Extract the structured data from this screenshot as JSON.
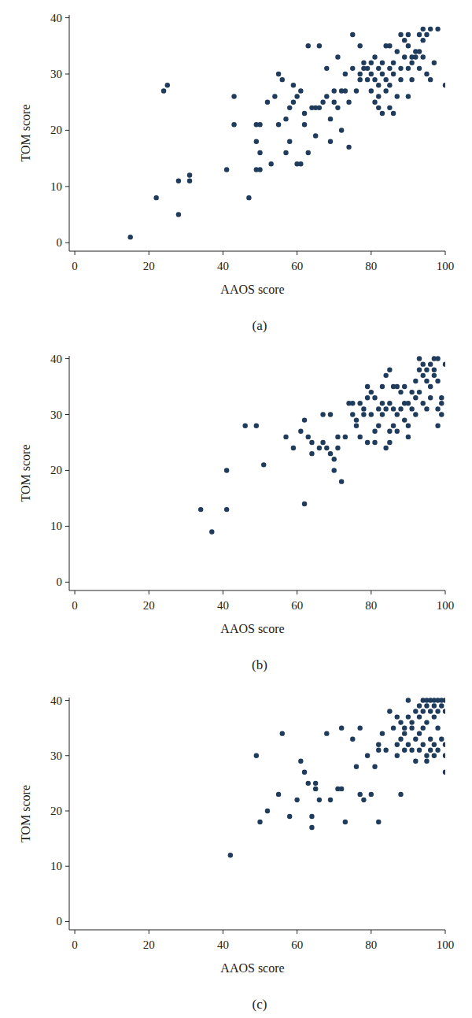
{
  "chart_data": [
    {
      "type": "scatter",
      "title": "(a)",
      "x_label": "AAOS score",
      "y_label": "TOM score",
      "color": "#1f3c5c",
      "marker": "circle",
      "xlim": [
        -1.5,
        100
      ],
      "ylim": [
        -1.5,
        40.5
      ],
      "xticks": [
        0,
        20,
        40,
        60,
        80,
        100
      ],
      "yticks": [
        0,
        10,
        20,
        30,
        40
      ],
      "x": [
        15,
        22,
        28,
        28,
        31,
        31,
        24,
        25,
        41,
        43,
        43,
        47,
        49,
        50,
        49,
        49,
        50,
        50,
        52,
        53,
        54,
        55,
        55,
        56,
        57,
        57,
        58,
        58,
        59,
        59,
        60,
        60,
        61,
        61,
        62,
        62,
        63,
        63,
        64,
        65,
        65,
        66,
        66,
        67,
        68,
        68,
        69,
        69,
        70,
        70,
        71,
        71,
        72,
        72,
        73,
        73,
        74,
        74,
        75,
        75,
        76,
        77,
        77,
        77,
        78,
        78,
        79,
        79,
        80,
        80,
        80,
        81,
        81,
        81,
        82,
        82,
        82,
        82,
        83,
        83,
        83,
        84,
        84,
        84,
        85,
        85,
        85,
        85,
        86,
        86,
        86,
        87,
        87,
        88,
        88,
        88,
        89,
        89,
        90,
        90,
        90,
        90,
        91,
        91,
        91,
        92,
        92,
        93,
        93,
        93,
        94,
        94,
        94,
        95,
        95,
        96,
        96,
        97,
        98,
        100
      ],
      "values": [
        1,
        8,
        5,
        11,
        11,
        12,
        27,
        28,
        13,
        21,
        26,
        8,
        13,
        13,
        18,
        21,
        21,
        16,
        25,
        14,
        26,
        30,
        21,
        29,
        22,
        16,
        18,
        24,
        25,
        28,
        14,
        26,
        27,
        14,
        23,
        21,
        16,
        35,
        24,
        19,
        24,
        35,
        24,
        25,
        31,
        26,
        18,
        22,
        27,
        25,
        33,
        24,
        20,
        27,
        30,
        27,
        17,
        25,
        37,
        31,
        27,
        35,
        29,
        30,
        32,
        31,
        29,
        31,
        32,
        30,
        27,
        33,
        29,
        25,
        31,
        28,
        26,
        24,
        30,
        23,
        32,
        29,
        27,
        35,
        35,
        31,
        28,
        24,
        32,
        30,
        23,
        34,
        26,
        37,
        31,
        29,
        36,
        33,
        37,
        35,
        31,
        26,
        32,
        33,
        29,
        34,
        33,
        37,
        31,
        34,
        38,
        36,
        33,
        37,
        30,
        29,
        38,
        32,
        38,
        28
      ]
    },
    {
      "type": "scatter",
      "title": "(b)",
      "x_label": "AAOS score",
      "y_label": "TOM score",
      "color": "#1f3c5c",
      "marker": "circle",
      "xlim": [
        -1.5,
        100
      ],
      "ylim": [
        -1.5,
        40.5
      ],
      "xticks": [
        0,
        20,
        40,
        60,
        80,
        100
      ],
      "yticks": [
        0,
        10,
        20,
        30,
        40
      ],
      "x": [
        34,
        37,
        41,
        41,
        46,
        49,
        51,
        57,
        59,
        61,
        62,
        62,
        63,
        64,
        64,
        66,
        67,
        67,
        68,
        69,
        69,
        70,
        70,
        71,
        71,
        72,
        73,
        74,
        75,
        75,
        76,
        76,
        77,
        77,
        78,
        78,
        79,
        79,
        79,
        80,
        80,
        81,
        81,
        81,
        82,
        82,
        83,
        83,
        83,
        84,
        84,
        84,
        85,
        85,
        85,
        85,
        86,
        86,
        86,
        87,
        87,
        87,
        88,
        88,
        89,
        89,
        89,
        90,
        90,
        90,
        91,
        91,
        92,
        92,
        92,
        93,
        93,
        93,
        94,
        94,
        94,
        95,
        95,
        95,
        96,
        96,
        96,
        97,
        97,
        97,
        98,
        98,
        98,
        98,
        99,
        99,
        99,
        100
      ],
      "values": [
        13,
        9,
        20,
        13,
        28,
        28,
        21,
        26,
        24,
        27,
        29,
        14,
        26,
        23,
        25,
        24,
        30,
        25,
        24,
        30,
        23,
        22,
        20,
        26,
        24,
        18,
        26,
        32,
        32,
        30,
        28,
        29,
        32,
        26,
        31,
        30,
        35,
        33,
        25,
        30,
        34,
        33,
        27,
        25,
        31,
        28,
        30,
        35,
        32,
        37,
        31,
        24,
        38,
        32,
        27,
        25,
        31,
        35,
        28,
        35,
        30,
        27,
        34,
        31,
        35,
        29,
        32,
        32,
        28,
        26,
        34,
        31,
        36,
        33,
        30,
        38,
        40,
        34,
        39,
        32,
        37,
        38,
        36,
        31,
        39,
        35,
        33,
        38,
        40,
        37,
        40,
        36,
        31,
        28,
        33,
        32,
        30,
        39
      ]
    },
    {
      "type": "scatter",
      "title": "(c)",
      "x_label": "AAOS score",
      "y_label": "TOM score",
      "color": "#1f3c5c",
      "marker": "circle",
      "xlim": [
        -1.5,
        100
      ],
      "ylim": [
        -1.5,
        40.5
      ],
      "xticks": [
        0,
        20,
        40,
        60,
        80,
        100
      ],
      "yticks": [
        0,
        10,
        20,
        30,
        40
      ],
      "x": [
        42,
        49,
        50,
        52,
        55,
        56,
        58,
        60,
        61,
        62,
        63,
        64,
        64,
        65,
        65,
        66,
        68,
        69,
        71,
        72,
        72,
        73,
        75,
        76,
        77,
        77,
        78,
        79,
        80,
        81,
        82,
        82,
        82,
        83,
        84,
        85,
        86,
        87,
        87,
        87,
        88,
        88,
        88,
        89,
        89,
        89,
        90,
        90,
        90,
        91,
        91,
        91,
        92,
        92,
        92,
        93,
        93,
        93,
        93,
        94,
        94,
        94,
        94,
        95,
        95,
        95,
        95,
        95,
        96,
        96,
        96,
        96,
        97,
        97,
        97,
        97,
        97,
        98,
        98,
        98,
        98,
        99,
        99,
        99,
        100,
        100,
        100,
        100,
        100
      ],
      "values": [
        12,
        30,
        18,
        20,
        23,
        34,
        19,
        22,
        29,
        27,
        25,
        19,
        17,
        25,
        24,
        22,
        34,
        22,
        24,
        35,
        24,
        18,
        33,
        28,
        35,
        23,
        22,
        30,
        23,
        28,
        31,
        32,
        18,
        34,
        31,
        38,
        35,
        32,
        30,
        37,
        36,
        33,
        23,
        35,
        31,
        34,
        40,
        37,
        32,
        36,
        35,
        31,
        38,
        33,
        29,
        39,
        37,
        34,
        31,
        40,
        38,
        35,
        32,
        40,
        39,
        36,
        30,
        29,
        40,
        38,
        33,
        31,
        40,
        39,
        37,
        32,
        30,
        40,
        38,
        35,
        31,
        40,
        39,
        33,
        40,
        38,
        32,
        30,
        27
      ]
    }
  ]
}
